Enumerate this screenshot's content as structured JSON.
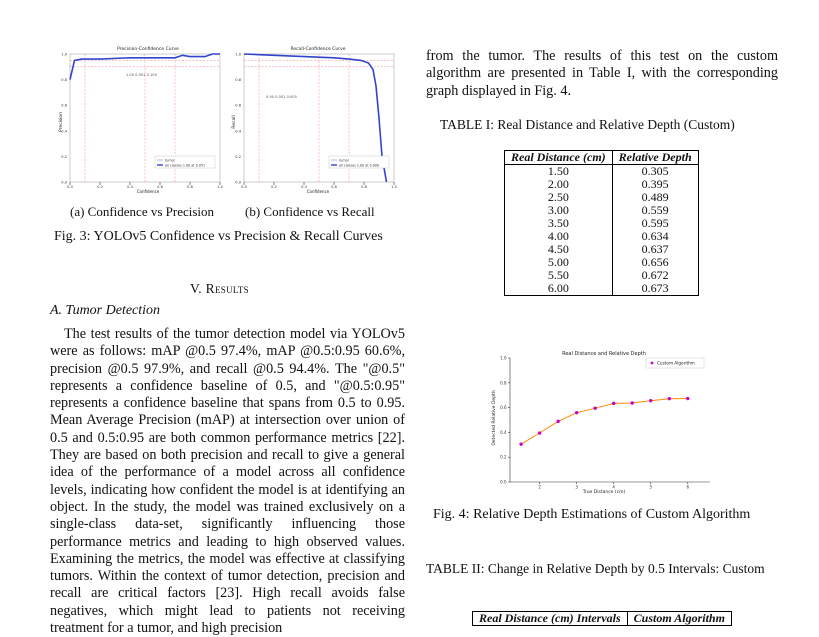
{
  "fig3": {
    "panels": [
      {
        "title": "Precision-Confidence Curve",
        "xlabel": "Confidence",
        "ylabel": "Precision",
        "legend": [
          "tumor",
          "all classes 1.00 at 0.951"
        ],
        "note": "1.00  0.951  0.100",
        "subcaption": "(a) Confidence vs Precision",
        "chart_data": {
          "type": "line",
          "xlim": [
            0,
            1
          ],
          "ylim": [
            0,
            1
          ],
          "series": [
            {
              "name": "all classes 1.00 at 0.951",
              "x": [
                0.0,
                0.03,
                0.08,
                0.2,
                0.4,
                0.6,
                0.7,
                0.75,
                0.8,
                0.9,
                0.95,
                1.0
              ],
              "y": [
                0.8,
                0.95,
                0.96,
                0.96,
                0.97,
                0.97,
                0.97,
                0.99,
                0.98,
                0.98,
                1.0,
                1.0
              ]
            }
          ]
        }
      },
      {
        "title": "Recall-Confidence Curve",
        "xlabel": "Confidence",
        "ylabel": "Recall",
        "legend": [
          "tumor",
          "all classes 1.00 at 0.000"
        ],
        "note": "0.90  0.001  0.005",
        "subcaption": "(b) Confidence vs Recall",
        "chart_data": {
          "type": "line",
          "xlim": [
            0,
            1
          ],
          "ylim": [
            0,
            1
          ],
          "series": [
            {
              "name": "all classes 1.00 at 0.000",
              "x": [
                0.0,
                0.2,
                0.4,
                0.6,
                0.7,
                0.78,
                0.83,
                0.86,
                0.88,
                0.9,
                0.92,
                0.95
              ],
              "y": [
                1.0,
                0.99,
                0.98,
                0.97,
                0.96,
                0.95,
                0.93,
                0.88,
                0.75,
                0.5,
                0.2,
                0.0
              ]
            }
          ]
        }
      }
    ],
    "caption": "Fig. 3: YOLOv5 Confidence vs Precision & Recall Curves"
  },
  "section_heading": "V. Results",
  "subsection_heading": "A. Tumor Detection",
  "body_paragraph": "The test results of the tumor detection model via YOLOv5 were as follows: mAP @0.5 97.4%, mAP @0.5:0.95 60.6%, precision @0.5 97.9%, and recall @0.5 94.4%. The \"@0.5\" represents a confidence baseline of 0.5, and \"@0.5:0.95\" represents a confidence baseline that spans from 0.5 to 0.95. Mean Average Precision (mAP) at intersection over union of 0.5 and 0.5:0.95 are both common performance metrics [22]. They are based on both precision and recall to give a general idea of the performance of a model across all confidence levels, indicating how confident the model is at identifying an object. In the study, the model was trained exclusively on a single-class data-set, significantly influencing those performance metrics and leading to high observed values. Examining the metrics, the model was effective at classifying tumors. Within the context of tumor detection, precision and recall are critical factors [23]. High recall avoids false negatives, which might lead to patients not receiving treatment for a tumor, and high precision",
  "right_paragraph": "from the tumor. The results of this test on the custom algorithm are presented in Table I, with the corresponding graph displayed in Fig. 4.",
  "table1": {
    "caption": "TABLE I: Real Distance and Relative Depth (Custom)",
    "headers": [
      "Real Distance (cm)",
      "Relative Depth"
    ],
    "rows": [
      [
        "1.50",
        "0.305"
      ],
      [
        "2.00",
        "0.395"
      ],
      [
        "2.50",
        "0.489"
      ],
      [
        "3.00",
        "0.559"
      ],
      [
        "3.50",
        "0.595"
      ],
      [
        "4.00",
        "0.634"
      ],
      [
        "4.50",
        "0.637"
      ],
      [
        "5.00",
        "0.656"
      ],
      [
        "5.50",
        "0.672"
      ],
      [
        "6.00",
        "0.673"
      ]
    ]
  },
  "fig4": {
    "caption": "Fig. 4: Relative Depth Estimations of Custom Algorithm",
    "chart_data": {
      "type": "scatter",
      "title": "Real Distance and Relative Depth",
      "xlabel": "True Distance (cm)",
      "ylabel": "Detected Relative Depth",
      "xlim": [
        1.2,
        6.6
      ],
      "ylim": [
        0.0,
        1.0
      ],
      "xticks": [
        2,
        3,
        4,
        5,
        6
      ],
      "yticks": [
        0.0,
        0.2,
        0.4,
        0.6,
        0.8,
        1.0
      ],
      "legend_position": "top-right",
      "series": [
        {
          "name": "Custom Algorithm",
          "x": [
            1.5,
            2.0,
            2.5,
            3.0,
            3.5,
            4.0,
            4.5,
            5.0,
            5.5,
            6.0
          ],
          "y": [
            0.305,
            0.395,
            0.489,
            0.559,
            0.595,
            0.634,
            0.637,
            0.656,
            0.672,
            0.673
          ]
        }
      ],
      "colors": {
        "points": "#cc00cc",
        "fit": "#ff8c00"
      }
    }
  },
  "table2": {
    "caption": "TABLE II: Change in Relative Depth by 0.5 Intervals: Custom",
    "headers": [
      "Real Distance (cm) Intervals",
      "Custom Algorithm"
    ]
  }
}
